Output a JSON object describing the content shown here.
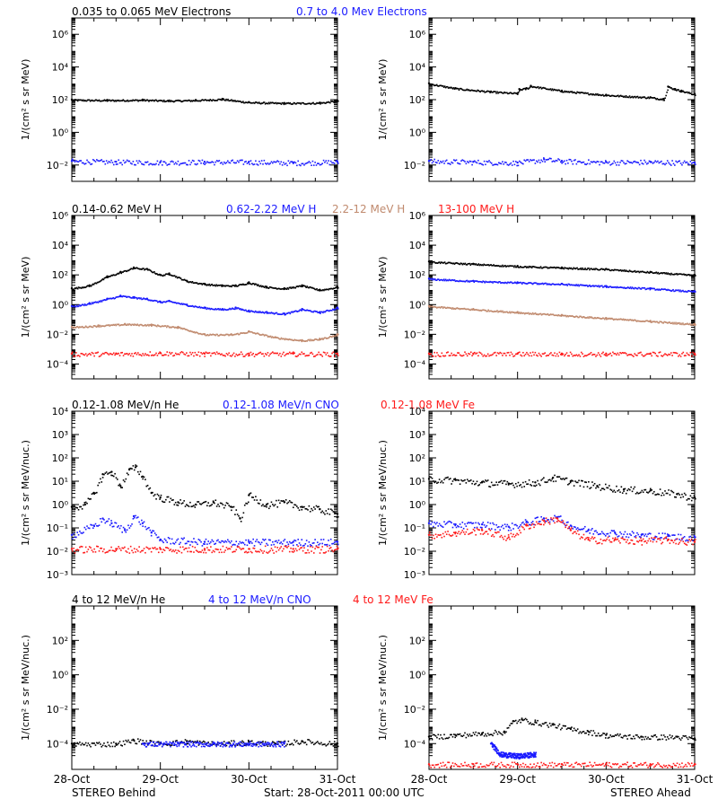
{
  "colors": {
    "black": "#000000",
    "blue": "#1a1aff",
    "tan": "#c08a6e",
    "red": "#ff1a1a"
  },
  "footer": {
    "left": "STEREO Behind",
    "center": "Start: 28-Oct-2011 00:00 UTC",
    "right": "STEREO Ahead"
  },
  "chart_data": [
    {
      "type": "scatter",
      "row": 0,
      "titles": [
        {
          "text": "0.035 to 0.065 MeV Electrons",
          "color": "black"
        },
        {
          "text": "0.7 to 4.0 Mev Electrons",
          "color": "blue"
        }
      ],
      "ylabel": "1/(cm² s sr MeV)",
      "yscale": "log",
      "ylim_exp": [
        -3,
        7
      ],
      "yticks": [
        {
          "exp": -2,
          "label": "10⁻²"
        },
        {
          "exp": 0,
          "label": "10⁰"
        },
        {
          "exp": 2,
          "label": "10²"
        },
        {
          "exp": 4,
          "label": "10⁴"
        },
        {
          "exp": 6,
          "label": "10⁶"
        }
      ],
      "xlim_days": [
        0,
        3
      ],
      "xticks": [
        "28-Oct",
        "29-Oct",
        "30-Oct",
        "31-Oct"
      ],
      "panels": [
        {
          "spacecraft": "STEREO Behind",
          "series": [
            {
              "color": "black",
              "style": "line",
              "x": [
                0,
                0.4,
                0.8,
                1.1,
                1.4,
                1.7,
                2.0,
                2.4,
                2.8,
                3.0
              ],
              "y_exp": [
                2.0,
                1.98,
                2.0,
                1.95,
                1.98,
                2.05,
                1.85,
                1.8,
                1.82,
                1.95
              ]
            },
            {
              "color": "blue",
              "style": "scatter",
              "x": [
                0,
                0.5,
                1.0,
                1.5,
                2.0,
                2.5,
                3.0
              ],
              "y_exp": [
                -1.75,
                -1.8,
                -1.82,
                -1.8,
                -1.8,
                -1.85,
                -1.8
              ]
            }
          ]
        },
        {
          "spacecraft": "STEREO Ahead",
          "series": [
            {
              "color": "black",
              "style": "line",
              "x": [
                0,
                0.3,
                0.7,
                1.0,
                1.02,
                1.1,
                1.15,
                1.5,
                2.0,
                2.5,
                2.65,
                2.7,
                2.78,
                2.85,
                3.0
              ],
              "y_exp": [
                3.0,
                2.7,
                2.5,
                2.4,
                2.65,
                2.7,
                2.85,
                2.55,
                2.3,
                2.15,
                2.05,
                2.8,
                2.65,
                2.55,
                2.35
              ]
            },
            {
              "color": "blue",
              "style": "scatter",
              "x": [
                0,
                0.5,
                1.0,
                1.3,
                1.5,
                2.0,
                2.5,
                3.0
              ],
              "y_exp": [
                -1.75,
                -1.8,
                -1.85,
                -1.65,
                -1.75,
                -1.82,
                -1.8,
                -1.85
              ]
            }
          ]
        }
      ]
    },
    {
      "type": "scatter",
      "row": 1,
      "titles": [
        {
          "text": "0.14-0.62 MeV H",
          "color": "black"
        },
        {
          "text": "0.62-2.22 MeV H",
          "color": "blue"
        },
        {
          "text": "2.2-12 MeV H",
          "color": "tan"
        },
        {
          "text": "13-100 MeV H",
          "color": "red"
        }
      ],
      "ylabel": "1/(cm² s sr MeV)",
      "yscale": "log",
      "ylim_exp": [
        -5,
        6
      ],
      "yticks": [
        {
          "exp": -4,
          "label": "10⁻⁴"
        },
        {
          "exp": -2,
          "label": "10⁻²"
        },
        {
          "exp": 0,
          "label": "10⁰"
        },
        {
          "exp": 2,
          "label": "10²"
        },
        {
          "exp": 4,
          "label": "10⁴"
        },
        {
          "exp": 6,
          "label": "10⁶"
        }
      ],
      "xlim_days": [
        0,
        3
      ],
      "xticks": [
        "28-Oct",
        "29-Oct",
        "30-Oct",
        "31-Oct"
      ],
      "panels": [
        {
          "spacecraft": "STEREO Behind",
          "series": [
            {
              "color": "black",
              "style": "line",
              "x": [
                0,
                0.2,
                0.4,
                0.55,
                0.7,
                0.85,
                1.0,
                1.1,
                1.3,
                1.5,
                1.7,
                1.85,
                2.0,
                2.2,
                2.4,
                2.6,
                2.8,
                3.0
              ],
              "y_exp": [
                1.1,
                1.3,
                1.9,
                2.2,
                2.5,
                2.4,
                2.0,
                2.1,
                1.6,
                1.4,
                1.3,
                1.3,
                1.5,
                1.2,
                1.1,
                1.3,
                1.0,
                1.2
              ]
            },
            {
              "color": "blue",
              "style": "line",
              "x": [
                0,
                0.2,
                0.4,
                0.55,
                0.7,
                0.85,
                1.0,
                1.1,
                1.3,
                1.5,
                1.7,
                1.85,
                2.0,
                2.2,
                2.4,
                2.6,
                2.8,
                3.0
              ],
              "y_exp": [
                -0.1,
                0.1,
                0.4,
                0.6,
                0.5,
                0.4,
                0.2,
                0.25,
                0.0,
                -0.2,
                -0.3,
                -0.2,
                -0.4,
                -0.5,
                -0.6,
                -0.3,
                -0.5,
                -0.2
              ]
            },
            {
              "color": "tan",
              "style": "line",
              "x": [
                0,
                0.3,
                0.6,
                0.9,
                1.2,
                1.5,
                1.8,
                2.0,
                2.3,
                2.6,
                2.8,
                3.0
              ],
              "y_exp": [
                -1.5,
                -1.4,
                -1.3,
                -1.35,
                -1.5,
                -2.0,
                -2.0,
                -1.8,
                -2.2,
                -2.4,
                -2.3,
                -2.0
              ]
            },
            {
              "color": "red",
              "style": "scatter",
              "x": [
                0,
                0.5,
                1.0,
                1.5,
                2.0,
                2.5,
                3.0
              ],
              "y_exp": [
                -3.3,
                -3.3,
                -3.25,
                -3.3,
                -3.3,
                -3.3,
                -3.3
              ]
            }
          ]
        },
        {
          "spacecraft": "STEREO Ahead",
          "series": [
            {
              "color": "black",
              "style": "line",
              "x": [
                0,
                0.5,
                1.0,
                1.5,
                2.0,
                2.5,
                3.0
              ],
              "y_exp": [
                2.9,
                2.75,
                2.6,
                2.5,
                2.4,
                2.2,
                2.0
              ]
            },
            {
              "color": "blue",
              "style": "line",
              "x": [
                0,
                0.5,
                1.0,
                1.5,
                2.0,
                2.5,
                3.0
              ],
              "y_exp": [
                1.75,
                1.6,
                1.5,
                1.4,
                1.25,
                1.1,
                0.9
              ]
            },
            {
              "color": "tan",
              "style": "line",
              "x": [
                0,
                0.5,
                1.0,
                1.5,
                2.0,
                2.5,
                3.0
              ],
              "y_exp": [
                -0.1,
                -0.3,
                -0.5,
                -0.7,
                -0.9,
                -1.1,
                -1.3
              ]
            },
            {
              "color": "red",
              "style": "scatter",
              "x": [
                0,
                0.5,
                1.0,
                1.5,
                2.0,
                2.5,
                3.0
              ],
              "y_exp": [
                -3.3,
                -3.3,
                -3.3,
                -3.3,
                -3.3,
                -3.3,
                -3.3
              ]
            }
          ]
        }
      ]
    },
    {
      "type": "scatter",
      "row": 2,
      "titles": [
        {
          "text": "0.12-1.08 MeV/n He",
          "color": "black"
        },
        {
          "text": "0.12-1.08 MeV/n CNO",
          "color": "blue"
        },
        {
          "text": "0.12-1.08 MeV Fe",
          "color": "red"
        }
      ],
      "ylabel": "1/(cm² s sr MeV/nuc.)",
      "yscale": "log",
      "ylim_exp": [
        -3,
        4
      ],
      "yticks": [
        {
          "exp": -3,
          "label": "10⁻³"
        },
        {
          "exp": -2,
          "label": "10⁻²"
        },
        {
          "exp": -1,
          "label": "10⁻¹"
        },
        {
          "exp": 0,
          "label": "10⁰"
        },
        {
          "exp": 1,
          "label": "10¹"
        },
        {
          "exp": 2,
          "label": "10²"
        },
        {
          "exp": 3,
          "label": "10³"
        },
        {
          "exp": 4,
          "label": "10⁴"
        }
      ],
      "xlim_days": [
        0,
        3
      ],
      "xticks": [
        "28-Oct",
        "29-Oct",
        "30-Oct",
        "31-Oct"
      ],
      "panels": [
        {
          "spacecraft": "STEREO Behind",
          "series": [
            {
              "color": "black",
              "style": "scatter",
              "x": [
                0,
                0.15,
                0.25,
                0.35,
                0.45,
                0.55,
                0.65,
                0.72,
                0.8,
                0.9,
                1.0,
                1.2,
                1.4,
                1.6,
                1.8,
                1.9,
                2.0,
                2.2,
                2.4,
                2.6,
                2.8,
                3.0
              ],
              "y_exp": [
                -0.1,
                0.0,
                0.5,
                1.3,
                1.4,
                0.8,
                1.5,
                1.6,
                1.2,
                0.5,
                0.3,
                0.1,
                0.0,
                0.1,
                -0.1,
                -0.6,
                0.4,
                0.0,
                0.1,
                -0.1,
                -0.2,
                -0.4
              ]
            },
            {
              "color": "blue",
              "style": "scatter",
              "x": [
                0,
                0.25,
                0.35,
                0.45,
                0.6,
                0.7,
                0.8,
                0.9,
                1.0,
                1.5,
                2.0,
                2.5,
                3.0
              ],
              "y_exp": [
                -1.3,
                -0.9,
                -0.6,
                -0.8,
                -1.1,
                -0.5,
                -0.8,
                -1.2,
                -1.5,
                -1.6,
                -1.6,
                -1.6,
                -1.6
              ]
            },
            {
              "color": "red",
              "style": "scatter",
              "x": [
                0,
                0.5,
                1.0,
                1.5,
                2.0,
                2.5,
                3.0
              ],
              "y_exp": [
                -1.9,
                -1.9,
                -1.9,
                -1.9,
                -1.9,
                -1.9,
                -1.9
              ]
            }
          ]
        },
        {
          "spacecraft": "STEREO Ahead",
          "series": [
            {
              "color": "black",
              "style": "scatter",
              "x": [
                0,
                0.3,
                0.6,
                0.9,
                1.2,
                1.4,
                1.6,
                1.9,
                2.2,
                2.5,
                2.8,
                3.0
              ],
              "y_exp": [
                1.1,
                1.05,
                0.95,
                0.9,
                0.95,
                1.15,
                1.0,
                0.8,
                0.65,
                0.6,
                0.45,
                0.3
              ]
            },
            {
              "color": "blue",
              "style": "scatter",
              "x": [
                0,
                0.3,
                0.6,
                0.9,
                1.1,
                1.3,
                1.45,
                1.6,
                1.8,
                2.1,
                2.4,
                2.7,
                3.0
              ],
              "y_exp": [
                -0.8,
                -0.85,
                -0.85,
                -0.95,
                -0.75,
                -0.6,
                -0.55,
                -0.9,
                -1.1,
                -1.2,
                -1.3,
                -1.35,
                -1.4
              ]
            },
            {
              "color": "red",
              "style": "scatter",
              "x": [
                0,
                0.3,
                0.6,
                0.9,
                1.1,
                1.3,
                1.45,
                1.6,
                1.8,
                2.1,
                2.4,
                2.7,
                3.0
              ],
              "y_exp": [
                -1.3,
                -1.2,
                -1.1,
                -1.4,
                -0.9,
                -0.7,
                -0.6,
                -1.1,
                -1.5,
                -1.5,
                -1.55,
                -1.5,
                -1.6
              ]
            }
          ]
        }
      ]
    },
    {
      "type": "scatter",
      "row": 3,
      "titles": [
        {
          "text": "4 to 12 MeV/n He",
          "color": "black"
        },
        {
          "text": "4 to 12 MeV/n CNO",
          "color": "blue"
        },
        {
          "text": "4 to 12 MeV Fe",
          "color": "red"
        }
      ],
      "ylabel": "1/(cm² s sr MeV/nuc.)",
      "yscale": "log",
      "ylim_exp": [
        -5.5,
        4
      ],
      "yticks": [
        {
          "exp": -4,
          "label": "10⁻⁴"
        },
        {
          "exp": -2,
          "label": "10⁻²"
        },
        {
          "exp": 0,
          "label": "10⁰"
        },
        {
          "exp": 2,
          "label": "10²"
        }
      ],
      "xlim_days": [
        0,
        3
      ],
      "xticks": [
        "28-Oct",
        "29-Oct",
        "30-Oct",
        "31-Oct"
      ],
      "panels": [
        {
          "spacecraft": "STEREO Behind",
          "series": [
            {
              "color": "black",
              "style": "scatter",
              "x": [
                0,
                0.5,
                0.7,
                1.0,
                1.3,
                1.6,
                2.0,
                2.3,
                2.6,
                3.0
              ],
              "y_exp": [
                -4.0,
                -4.0,
                -3.8,
                -4.0,
                -3.85,
                -4.0,
                -3.9,
                -4.0,
                -3.85,
                -4.0
              ]
            },
            {
              "color": "blue",
              "style": "scatter",
              "x": [
                0.8,
                1.2,
                1.6,
                2.0,
                2.4
              ],
              "y_exp": [
                -4.0,
                -4.0,
                -4.0,
                -4.0,
                -4.0
              ]
            }
          ]
        },
        {
          "spacecraft": "STEREO Ahead",
          "series": [
            {
              "color": "black",
              "style": "scatter",
              "x": [
                0,
                0.3,
                0.6,
                0.85,
                0.95,
                1.05,
                1.2,
                1.4,
                1.6,
                1.8,
                2.0,
                2.4,
                2.8,
                3.0
              ],
              "y_exp": [
                -3.6,
                -3.5,
                -3.4,
                -3.3,
                -2.7,
                -2.6,
                -2.75,
                -2.9,
                -3.15,
                -3.3,
                -3.5,
                -3.6,
                -3.6,
                -3.7
              ]
            },
            {
              "color": "blue",
              "style": "scatter",
              "x": [
                0.7,
                0.8,
                1.0,
                1.2
              ],
              "y_exp": [
                -4.0,
                -4.6,
                -4.7,
                -4.6
              ]
            },
            {
              "color": "red",
              "style": "scatter",
              "x": [
                0,
                0.5,
                1.0,
                1.5,
                2.0,
                2.5,
                3.0
              ],
              "y_exp": [
                -5.2,
                -5.2,
                -5.2,
                -5.2,
                -5.2,
                -5.2,
                -5.2
              ]
            }
          ]
        }
      ]
    }
  ]
}
